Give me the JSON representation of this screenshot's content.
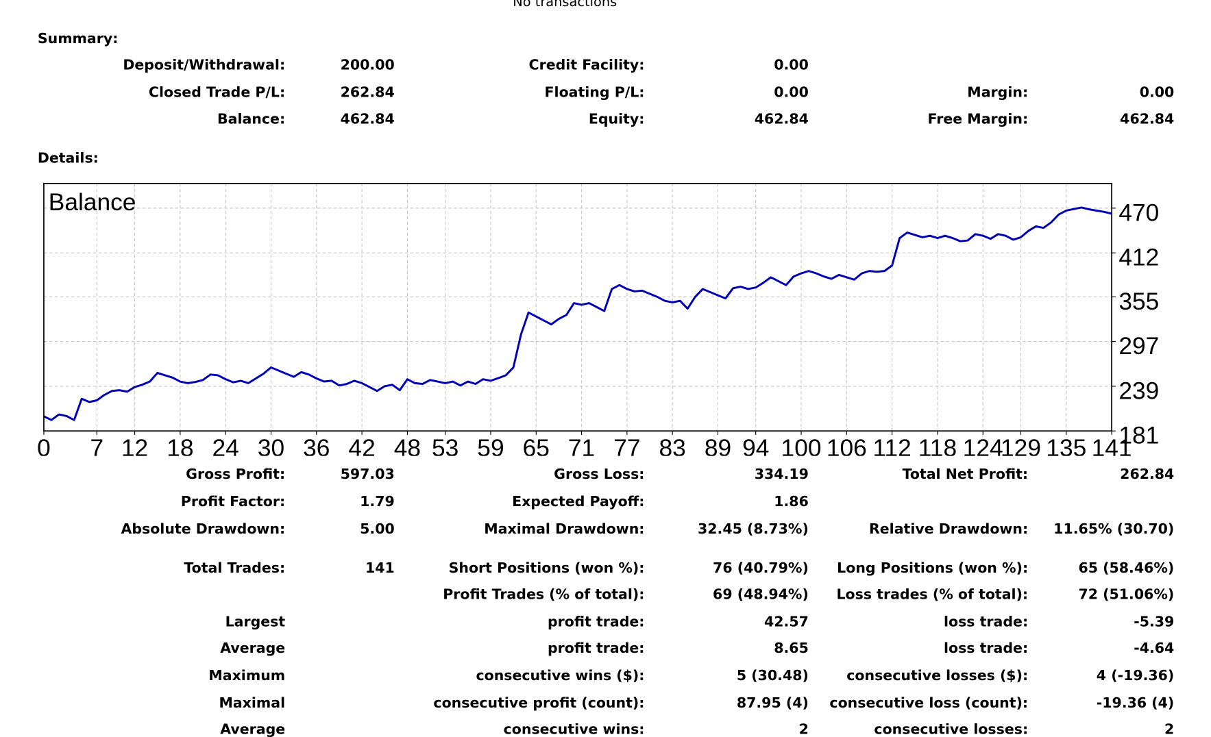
{
  "header": {
    "title": "No transactions"
  },
  "summary": {
    "title": "Summary:",
    "rows": [
      [
        "Deposit/Withdrawal:",
        "200.00",
        "Credit Facility:",
        "0.00",
        null,
        null
      ],
      [
        "Closed Trade P/L:",
        "262.84",
        "Floating P/L:",
        "0.00",
        "Margin:",
        "0.00"
      ],
      [
        "Balance:",
        "462.84",
        "Equity:",
        "462.84",
        "Free Margin:",
        "462.84"
      ]
    ]
  },
  "details": {
    "title": "Details:",
    "rows": [
      [
        "Gross Profit:",
        "597.03",
        "Gross Loss:",
        "334.19",
        "Total Net Profit:",
        "262.84"
      ],
      [
        "Profit Factor:",
        "1.79",
        "Expected Payoff:",
        "1.86",
        null,
        null
      ],
      [
        "Absolute Drawdown:",
        "5.00",
        "Maximal Drawdown:",
        "32.45 (8.73%)",
        "Relative Drawdown:",
        "11.65% (30.70)"
      ],
      [
        "Total Trades:",
        "141",
        "Short Positions (won %):",
        "76 (40.79%)",
        "Long Positions (won %):",
        "65 (58.46%)"
      ],
      [
        null,
        null,
        "Profit Trades (% of total):",
        "69 (48.94%)",
        "Loss trades (% of total):",
        "72 (51.06%)"
      ],
      [
        "Largest",
        null,
        "profit trade:",
        "42.57",
        "loss trade:",
        "-5.39"
      ],
      [
        "Average",
        null,
        "profit trade:",
        "8.65",
        "loss trade:",
        "-4.64"
      ],
      [
        "Maximum",
        null,
        "consecutive wins ($):",
        "5 (30.48)",
        "consecutive losses ($):",
        "4 (-19.36)"
      ],
      [
        "Maximal",
        null,
        "consecutive profit (count):",
        "87.95 (4)",
        "consecutive loss (count):",
        "-19.36 (4)"
      ],
      [
        "Average",
        null,
        "consecutive wins:",
        "2",
        "consecutive losses:",
        "2"
      ]
    ]
  },
  "chart_data": {
    "type": "line",
    "title": "Balance",
    "color": "#0000b4",
    "grid": true,
    "values": [
      200,
      195.2,
      202.4,
      200.3,
      195.2,
      222.7,
      218.6,
      220.7,
      227.8,
      232.9,
      233.9,
      231.9,
      238,
      241,
      245.1,
      256.3,
      253.2,
      250.2,
      245.1,
      243,
      244.5,
      247.1,
      254.2,
      253.2,
      248.1,
      244.1,
      246.1,
      243,
      249.1,
      255.2,
      263.4,
      259.3,
      255.2,
      251.2,
      257.3,
      254.2,
      249.1,
      245.1,
      246.1,
      240,
      242,
      246.1,
      243,
      238,
      232.9,
      239,
      241,
      233.9,
      248.1,
      243,
      242,
      247.1,
      245.1,
      243,
      245.1,
      240,
      245.1,
      242,
      248.1,
      246.1,
      249.5,
      253.2,
      263.4,
      306.1,
      334.6,
      329.5,
      324.4,
      319.3,
      326.4,
      331.5,
      346.8,
      344.7,
      346.8,
      341.7,
      336.6,
      365.1,
      370.2,
      365.1,
      362,
      363,
      359,
      354.9,
      349.8,
      347.8,
      349.8,
      339.7,
      354.9,
      365.1,
      361,
      357,
      352.9,
      366.1,
      368.1,
      365.1,
      367.1,
      373.2,
      380.3,
      375.2,
      370.2,
      381.3,
      385.4,
      388.5,
      385.4,
      381.3,
      378.3,
      383.4,
      380.3,
      377.3,
      385.4,
      388.5,
      387.5,
      388.5,
      395.6,
      431.2,
      438.3,
      435.3,
      432.2,
      434.2,
      431.2,
      434.2,
      431.2,
      427.1,
      428.1,
      436.3,
      434.2,
      430.2,
      436.3,
      434.2,
      429.1,
      432.2,
      440.5,
      446.4,
      444.4,
      451.5,
      461.7,
      466.8,
      468.8,
      470.8,
      468.5,
      466.8,
      465.2,
      462.8
    ],
    "xlim": [
      0,
      141
    ],
    "xticks": [
      0,
      7,
      12,
      18,
      24,
      30,
      36,
      42,
      48,
      53,
      59,
      65,
      71,
      77,
      83,
      89,
      94,
      100,
      106,
      112,
      118,
      124,
      129,
      135,
      141
    ],
    "ylim": [
      181,
      502
    ],
    "yticks": [
      181,
      239,
      297,
      355,
      412,
      470
    ]
  }
}
